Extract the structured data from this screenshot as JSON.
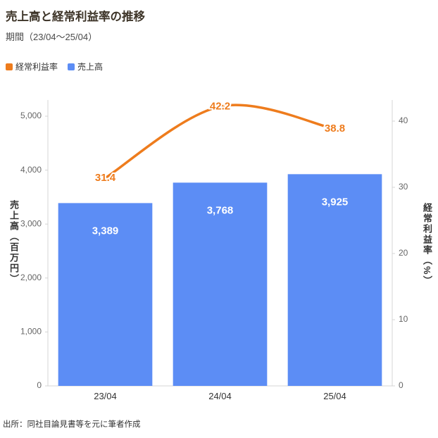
{
  "header": {
    "title": "売上高と経常利益率の推移",
    "subtitle": "期間（23/04〜25/04）"
  },
  "legend": [
    {
      "label": "経常利益率",
      "color": "#ee7c1d"
    },
    {
      "label": "売上高",
      "color": "#5c8df5"
    }
  ],
  "source": "出所：同社目論見書等を元に筆者作成",
  "chart_data": {
    "type": "bar+line combo",
    "categories": [
      "23/04",
      "24/04",
      "25/04"
    ],
    "series": [
      {
        "name": "売上高",
        "type": "bar",
        "axis": "left",
        "color": "#5c8df5",
        "values": [
          3389,
          3768,
          3925
        ]
      },
      {
        "name": "経常利益率",
        "type": "line",
        "axis": "right",
        "color": "#ee7c1d",
        "values": [
          31.4,
          42.2,
          38.8
        ]
      }
    ],
    "left_axis": {
      "label": "売上高（百万円）",
      "ticks": [
        0,
        1000,
        2000,
        3000,
        4000,
        5000
      ],
      "max": 5000
    },
    "right_axis": {
      "label": "経常利益率（%）",
      "ticks": [
        0,
        10,
        20,
        30,
        40
      ],
      "max": 40
    },
    "grid": false,
    "legend_position": "top-left",
    "value_labels": true
  }
}
